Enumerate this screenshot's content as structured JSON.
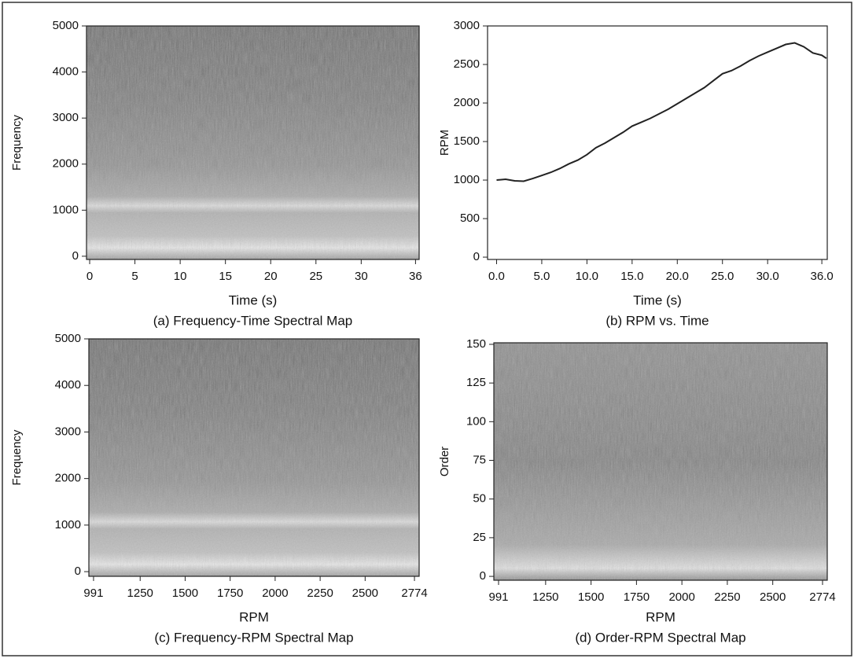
{
  "chart_data": [
    {
      "type": "spectrogram",
      "title": "(a) Frequency-Time Spectral Map",
      "xlabel": "Time (s)",
      "ylabel": "Frequency",
      "xlim": [
        -0.35,
        36.4
      ],
      "ylim": [
        -70,
        5000
      ],
      "xticks": [
        0,
        5,
        10,
        15,
        20,
        25,
        30,
        36
      ],
      "yticks": [
        0,
        1000,
        2000,
        3000,
        4000,
        5000
      ]
    },
    {
      "type": "line",
      "title": "(b) RPM vs. Time",
      "xlabel": "Time (s)",
      "ylabel": "RPM",
      "xlim": [
        -1,
        36.6
      ],
      "ylim": [
        -30,
        3000
      ],
      "xticks": [
        {
          "value": 0,
          "label": "0.0"
        },
        {
          "value": 5,
          "label": "5.0"
        },
        {
          "value": 10,
          "label": "10.0"
        },
        {
          "value": 15,
          "label": "15.0"
        },
        {
          "value": 20,
          "label": "20.0"
        },
        {
          "value": 25,
          "label": "25.0"
        },
        {
          "value": 30,
          "label": "30.0"
        },
        {
          "value": 36,
          "label": "36.0"
        }
      ],
      "yticks": [
        0,
        500,
        1000,
        1500,
        2000,
        2500,
        3000
      ],
      "x": [
        0,
        1,
        2,
        3,
        4,
        5,
        6,
        7,
        8,
        9,
        10,
        11,
        12,
        13,
        14,
        15,
        16,
        17,
        18,
        19,
        20,
        21,
        22,
        23,
        24,
        25,
        26,
        27,
        28,
        29,
        30,
        31,
        32,
        33,
        34,
        35,
        36,
        36.5
      ],
      "series": [
        {
          "color": "#222222",
          "values": [
            1000,
            1010,
            990,
            985,
            1020,
            1060,
            1100,
            1150,
            1210,
            1260,
            1330,
            1420,
            1480,
            1550,
            1620,
            1700,
            1750,
            1800,
            1860,
            1920,
            1990,
            2060,
            2130,
            2200,
            2290,
            2380,
            2420,
            2480,
            2550,
            2610,
            2660,
            2710,
            2760,
            2780,
            2730,
            2650,
            2620,
            2580
          ]
        }
      ]
    },
    {
      "type": "spectrogram",
      "title": "(c) Frequency-RPM Spectral Map",
      "xlabel": "RPM",
      "ylabel": "Frequency",
      "xlim": [
        965,
        2800
      ],
      "ylim": [
        -100,
        5000
      ],
      "xticks": [
        991,
        1250,
        1500,
        1750,
        2000,
        2250,
        2500,
        2774
      ],
      "yticks": [
        0,
        1000,
        2000,
        3000,
        4000,
        5000
      ]
    },
    {
      "type": "spectrogram",
      "title": "(d) Order-RPM Spectral Map",
      "xlabel": "RPM",
      "ylabel": "Order",
      "xlim": [
        965,
        2800
      ],
      "ylim": [
        -2.5,
        151
      ],
      "xticks": [
        991,
        1250,
        1500,
        1750,
        2000,
        2250,
        2500,
        2774
      ],
      "yticks": [
        0,
        25,
        50,
        75,
        100,
        125,
        150
      ]
    }
  ]
}
